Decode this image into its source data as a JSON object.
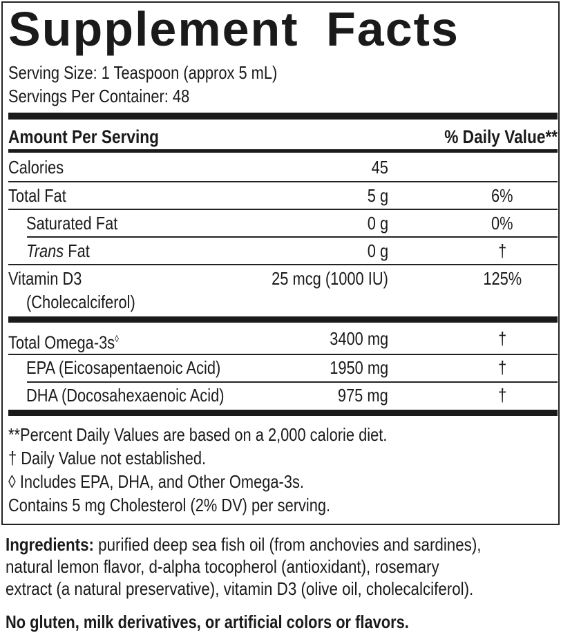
{
  "title": "Supplement Facts",
  "serving_size": "Serving Size: 1 Teaspoon (approx 5 mL)",
  "servings_per_container": "Servings Per Container: 48",
  "header": {
    "amount": "Amount Per Serving",
    "dv": "% Daily Value**"
  },
  "rows": [
    {
      "name": "Calories",
      "amount": "45",
      "dv": ""
    },
    {
      "name": "Total Fat",
      "amount": "5 g",
      "dv": "6%"
    },
    {
      "name": "Saturated Fat",
      "amount": "0 g",
      "dv": "0%"
    },
    {
      "name_italic": "Trans",
      "name": " Fat",
      "amount": "0 g",
      "dv": "†"
    },
    {
      "name": "Vitamin D3",
      "name2": "(Cholecalciferol)",
      "amount": "25 mcg (1000 IU)",
      "dv": "125%"
    }
  ],
  "omega_rows": [
    {
      "name": "Total Omega-3s",
      "mark": "◊",
      "amount": "3400 mg",
      "dv": "†"
    },
    {
      "name": "EPA (Eicosapentaenoic Acid)",
      "amount": "1950 mg",
      "dv": "†"
    },
    {
      "name": "DHA (Docosahexaenoic Acid)",
      "amount": "975 mg",
      "dv": "†"
    }
  ],
  "footnotes": [
    "**Percent Daily Values are based on a 2,000 calorie diet.",
    "† Daily Value not established.",
    "◊ Includes EPA, DHA, and Other Omega-3s.",
    "Contains 5 mg Cholesterol (2% DV) per serving."
  ],
  "ingredients": {
    "label": "Ingredients:",
    "lines": [
      " purified deep sea fish oil (from anchovies and sardines),",
      "natural lemon flavor, d-alpha tocopherol (antioxidant), rosemary",
      "extract (a natural preservative), vitamin D3 (olive oil, cholecalciferol)."
    ]
  },
  "allergen_statement": "No gluten, milk derivatives, or artificial colors or flavors."
}
